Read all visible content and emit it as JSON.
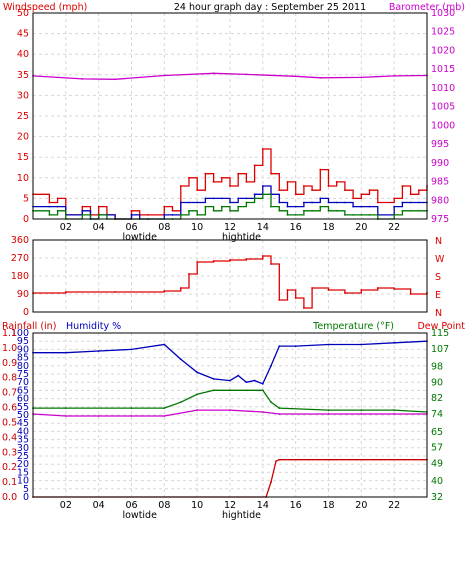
{
  "header": {
    "left_title": "Windspeed (mph)",
    "center_title": "24 hour graph day : September 25 2011",
    "right_title": "Barometer (mb)"
  },
  "colors": {
    "red": "#dd0000",
    "magenta": "#cc00cc",
    "blue": "#0000bb",
    "green": "#007700",
    "dark_red": "#cc0000",
    "grid": "#d8d8d8",
    "frame": "#000000"
  },
  "time_axis": {
    "x": [
      "02",
      "04",
      "06",
      "08",
      "10",
      "12",
      "14",
      "16",
      "18",
      "20",
      "22"
    ],
    "tide_low_label": "lowtide",
    "tide_high_label": "hightide",
    "range_hours": [
      0,
      24
    ]
  },
  "chart_data": [
    {
      "type": "line",
      "name": "wind-barometer",
      "left_axis": {
        "label": "Windspeed (mph)",
        "ticks": [
          0,
          5,
          10,
          15,
          20,
          25,
          30,
          35,
          40,
          45,
          50
        ],
        "range": [
          0,
          50
        ]
      },
      "right_axis": {
        "label": "Barometer (mb)",
        "ticks": [
          975,
          980,
          985,
          990,
          995,
          1000,
          1005,
          1010,
          1015,
          1020,
          1025,
          1030
        ],
        "range": [
          975,
          1030
        ]
      },
      "series": [
        {
          "role": "barometer",
          "axis": "right",
          "color": "magenta",
          "points": [
            [
              0,
              1013.2
            ],
            [
              3,
              1012.4
            ],
            [
              5,
              1012.3
            ],
            [
              8,
              1013.3
            ],
            [
              11,
              1013.9
            ],
            [
              13,
              1013.6
            ],
            [
              16,
              1013.1
            ],
            [
              17.5,
              1012.7
            ],
            [
              20,
              1012.8
            ],
            [
              22,
              1013.2
            ],
            [
              24,
              1013.3
            ]
          ]
        },
        {
          "role": "gust",
          "axis": "left",
          "color": "red",
          "points": [
            [
              0,
              6
            ],
            [
              1,
              4
            ],
            [
              1.5,
              5
            ],
            [
              2,
              1
            ],
            [
              3,
              3
            ],
            [
              3.5,
              1
            ],
            [
              4,
              3
            ],
            [
              4.5,
              1
            ],
            [
              5,
              0
            ],
            [
              6,
              2
            ],
            [
              6.5,
              1
            ],
            [
              7,
              1
            ],
            [
              8,
              3
            ],
            [
              8.5,
              2
            ],
            [
              9,
              8
            ],
            [
              9.5,
              10
            ],
            [
              10,
              7
            ],
            [
              10.5,
              11
            ],
            [
              11,
              9
            ],
            [
              11.5,
              10
            ],
            [
              12,
              8
            ],
            [
              12.5,
              11
            ],
            [
              13,
              9
            ],
            [
              13.5,
              13
            ],
            [
              14,
              17
            ],
            [
              14.5,
              11
            ],
            [
              15,
              7
            ],
            [
              15.5,
              9
            ],
            [
              16,
              6
            ],
            [
              16.5,
              8
            ],
            [
              17,
              7
            ],
            [
              17.5,
              12
            ],
            [
              18,
              8
            ],
            [
              18.5,
              9
            ],
            [
              19,
              7
            ],
            [
              19.5,
              5
            ],
            [
              20,
              6
            ],
            [
              20.5,
              7
            ],
            [
              21,
              4
            ],
            [
              22,
              5
            ],
            [
              22.5,
              8
            ],
            [
              23,
              6
            ],
            [
              23.5,
              7
            ],
            [
              24,
              8
            ]
          ]
        },
        {
          "role": "average",
          "axis": "left",
          "color": "blue",
          "points": [
            [
              0,
              3
            ],
            [
              1,
              3
            ],
            [
              1.5,
              3
            ],
            [
              2,
              1
            ],
            [
              3,
              2
            ],
            [
              3.5,
              0
            ],
            [
              4,
              1
            ],
            [
              4.5,
              1
            ],
            [
              5,
              0
            ],
            [
              6,
              1
            ],
            [
              6.5,
              0
            ],
            [
              7,
              0
            ],
            [
              8,
              1
            ],
            [
              8.5,
              1
            ],
            [
              9,
              4
            ],
            [
              9.5,
              4
            ],
            [
              10,
              4
            ],
            [
              10.5,
              5
            ],
            [
              11,
              5
            ],
            [
              11.5,
              5
            ],
            [
              12,
              4
            ],
            [
              12.5,
              5
            ],
            [
              13,
              5
            ],
            [
              13.5,
              6
            ],
            [
              14,
              8
            ],
            [
              14.5,
              6
            ],
            [
              15,
              4
            ],
            [
              15.5,
              3
            ],
            [
              16,
              3
            ],
            [
              16.5,
              4
            ],
            [
              17,
              4
            ],
            [
              17.5,
              5
            ],
            [
              18,
              4
            ],
            [
              18.5,
              4
            ],
            [
              19,
              4
            ],
            [
              19.5,
              3
            ],
            [
              20,
              3
            ],
            [
              20.5,
              3
            ],
            [
              21,
              1
            ],
            [
              22,
              3
            ],
            [
              22.5,
              4
            ],
            [
              23,
              4
            ],
            [
              23.5,
              4
            ],
            [
              24,
              4
            ]
          ]
        },
        {
          "role": "wind",
          "axis": "left",
          "color": "green",
          "points": [
            [
              0,
              2
            ],
            [
              1,
              1
            ],
            [
              1.5,
              2
            ],
            [
              2,
              0
            ],
            [
              3,
              1
            ],
            [
              3.5,
              0
            ],
            [
              4,
              1
            ],
            [
              4.5,
              0
            ],
            [
              5,
              0
            ],
            [
              6,
              0
            ],
            [
              6.5,
              0
            ],
            [
              7,
              0
            ],
            [
              8,
              0
            ],
            [
              8.5,
              0
            ],
            [
              9,
              1
            ],
            [
              9.5,
              2
            ],
            [
              10,
              1
            ],
            [
              10.5,
              3
            ],
            [
              11,
              2
            ],
            [
              11.5,
              3
            ],
            [
              12,
              2
            ],
            [
              12.5,
              3
            ],
            [
              13,
              4
            ],
            [
              13.5,
              5
            ],
            [
              14,
              6
            ],
            [
              14.5,
              3
            ],
            [
              15,
              2
            ],
            [
              15.5,
              1
            ],
            [
              16,
              1
            ],
            [
              16.5,
              2
            ],
            [
              17,
              2
            ],
            [
              17.5,
              3
            ],
            [
              18,
              2
            ],
            [
              18.5,
              2
            ],
            [
              19,
              1
            ],
            [
              19.5,
              1
            ],
            [
              20,
              1
            ],
            [
              20.5,
              1
            ],
            [
              21,
              0
            ],
            [
              22,
              1
            ],
            [
              22.5,
              2
            ],
            [
              23,
              2
            ],
            [
              23.5,
              2
            ],
            [
              24,
              2
            ]
          ]
        }
      ]
    },
    {
      "type": "line",
      "name": "wind-direction",
      "left_axis": {
        "label": "",
        "ticks": [
          0,
          90,
          180,
          270,
          360
        ],
        "range": [
          0,
          360
        ]
      },
      "right_axis": {
        "label": "",
        "ticks": [
          "N",
          "E",
          "S",
          "W",
          "N"
        ],
        "range": [
          0,
          360
        ]
      },
      "series": [
        {
          "role": "direction",
          "axis": "left",
          "color": "red",
          "points": [
            [
              0,
              95
            ],
            [
              2,
              100
            ],
            [
              5,
              100
            ],
            [
              8,
              105
            ],
            [
              9,
              120
            ],
            [
              9.5,
              190
            ],
            [
              10,
              250
            ],
            [
              11,
              255
            ],
            [
              12,
              260
            ],
            [
              13,
              265
            ],
            [
              14,
              280
            ],
            [
              14.5,
              240
            ],
            [
              15,
              60
            ],
            [
              15.5,
              110
            ],
            [
              16,
              70
            ],
            [
              16.5,
              20
            ],
            [
              17,
              120
            ],
            [
              18,
              110
            ],
            [
              19,
              95
            ],
            [
              20,
              110
            ],
            [
              21,
              120
            ],
            [
              22,
              115
            ],
            [
              23,
              90
            ],
            [
              24,
              95
            ]
          ]
        }
      ]
    },
    {
      "type": "line",
      "name": "rain-humidity-temperature",
      "left_axis": {
        "label": "Humidity %",
        "ticks": [
          0,
          5,
          10,
          15,
          20,
          25,
          30,
          35,
          40,
          45,
          50,
          55,
          60,
          65,
          70,
          75,
          80,
          85,
          90,
          95,
          100
        ],
        "range": [
          0,
          100
        ]
      },
      "rain_axis": {
        "label": "Rainfall (in)",
        "ticks": [
          0.0,
          0.1,
          0.2,
          0.3,
          0.4,
          0.5,
          0.6,
          0.7,
          0.8,
          0.9,
          1.0,
          1.1
        ],
        "range": [
          0,
          1.1
        ]
      },
      "right_axis": {
        "label": "Temperature (°F)",
        "label2": "Dew Point",
        "ticks": [
          32,
          40,
          49,
          57,
          65,
          74,
          82,
          90,
          98,
          107,
          115
        ],
        "range": [
          32,
          115
        ]
      },
      "series": [
        {
          "role": "humidity",
          "axis": "left",
          "color": "blue",
          "points": [
            [
              0,
              88
            ],
            [
              2,
              88
            ],
            [
              4,
              89
            ],
            [
              6,
              90
            ],
            [
              8,
              93
            ],
            [
              9,
              84
            ],
            [
              10,
              76
            ],
            [
              11,
              72
            ],
            [
              12,
              71
            ],
            [
              12.5,
              74
            ],
            [
              13,
              70
            ],
            [
              13.5,
              71
            ],
            [
              14,
              69
            ],
            [
              14.5,
              80
            ],
            [
              15,
              92
            ],
            [
              16,
              92
            ],
            [
              18,
              93
            ],
            [
              20,
              93
            ],
            [
              22,
              94
            ],
            [
              24,
              95
            ]
          ]
        },
        {
          "role": "temperature",
          "axis": "right",
          "color": "green",
          "points": [
            [
              0,
              77
            ],
            [
              2,
              77
            ],
            [
              6,
              77
            ],
            [
              8,
              77
            ],
            [
              9,
              80
            ],
            [
              10,
              84
            ],
            [
              11,
              86
            ],
            [
              12,
              86
            ],
            [
              13,
              86
            ],
            [
              14,
              86
            ],
            [
              14.5,
              80
            ],
            [
              15,
              77
            ],
            [
              18,
              76
            ],
            [
              20,
              76
            ],
            [
              22,
              76
            ],
            [
              24,
              75
            ]
          ]
        },
        {
          "role": "dew-point",
          "axis": "right",
          "color": "magenta",
          "points": [
            [
              0,
              74
            ],
            [
              2,
              73
            ],
            [
              4,
              73
            ],
            [
              6,
              73
            ],
            [
              8,
              73
            ],
            [
              10,
              76
            ],
            [
              12,
              76
            ],
            [
              14,
              75
            ],
            [
              15,
              74
            ],
            [
              18,
              74
            ],
            [
              20,
              74
            ],
            [
              22,
              74
            ],
            [
              24,
              74
            ]
          ]
        },
        {
          "role": "rainfall",
          "axis": "rain",
          "color": "dark_red",
          "points": [
            [
              0,
              0.0
            ],
            [
              14.2,
              0.0
            ],
            [
              14.5,
              0.1
            ],
            [
              14.8,
              0.24
            ],
            [
              15,
              0.25
            ],
            [
              24,
              0.25
            ]
          ]
        }
      ]
    }
  ]
}
